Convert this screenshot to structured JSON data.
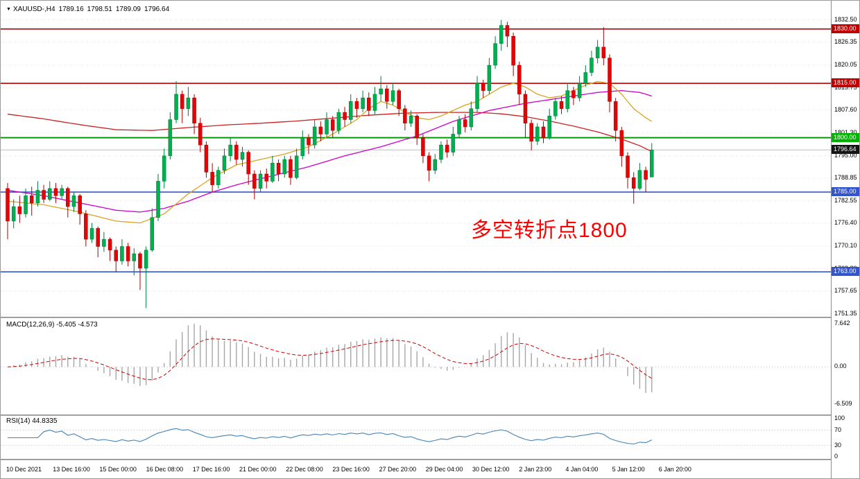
{
  "header": {
    "dropdown_icon": "▼",
    "symbol_timeframe": "XAUUSD-,H4",
    "open": "1789.16",
    "high": "1798.51",
    "low": "1789.09",
    "close": "1796.64"
  },
  "annotation": {
    "text": "多空转折点1800",
    "color": "#FF0000"
  },
  "chart_data": {
    "type": "candlestick",
    "symbol": "XAUUSD",
    "timeframe": "H4",
    "colors": {
      "up": "#00B050",
      "up_wick": "#007A38",
      "down": "#E30505",
      "down_wick": "#AA0000",
      "grid": "#DCDCDC",
      "current_line": "#BDBDBD",
      "current_box": "#141414",
      "macd_hist": "#A6A6A6",
      "macd_signal": "#CC0000",
      "rsi": "#4682B4"
    },
    "price_axis": {
      "top": 1837.8,
      "bottom": 1750.6,
      "ticks": [
        1832.5,
        1826.35,
        1820.05,
        1813.75,
        1807.6,
        1801.3,
        1795.0,
        1788.85,
        1782.55,
        1776.4,
        1770.1,
        1763.8,
        1757.65,
        1751.35
      ],
      "tick_labels": [
        "1832.50",
        "1826.35",
        "1820.05",
        "1813.75",
        "1807.60",
        "1801.30",
        "1795.00",
        "1788.85",
        "1782.55",
        "1776.40",
        "1770.10",
        "1763.80",
        "1757.65",
        "1751.35"
      ]
    },
    "horizontal_lines": [
      {
        "price": 1830.0,
        "label": "1830.00",
        "color": "#C00000",
        "width": 1.6,
        "label_bg": "#C00000"
      },
      {
        "price": 1815.0,
        "label": "1815.00",
        "color": "#C00000",
        "width": 1.6,
        "label_bg": "#C00000"
      },
      {
        "price": 1800.0,
        "label": "1800.00",
        "color": "#009B00",
        "width": 2,
        "label_bg": "#00B300"
      },
      {
        "price": 1785.0,
        "label": "1785.00",
        "color": "#3355CC",
        "width": 1.6,
        "label_bg": "#3355CC"
      },
      {
        "price": 1763.0,
        "label": "1763.00",
        "color": "#3355CC",
        "width": 1.6,
        "label_bg": "#3355CC"
      }
    ],
    "current_price": {
      "value": 1796.64,
      "label": "1796.64"
    },
    "x_axis_labels": [
      "10 Dec 2021",
      "13 Dec 16:00",
      "15 Dec 00:00",
      "16 Dec 08:00",
      "17 Dec 16:00",
      "21 Dec 00:00",
      "22 Dec 08:00",
      "23 Dec 16:00",
      "27 Dec 20:00",
      "29 Dec 04:00",
      "30 Dec 12:00",
      "2 Jan 23:00",
      "4 Jan 04:00",
      "5 Jan 12:00",
      "6 Jan 20:00"
    ],
    "candles": [
      [
        1786.0,
        1787.5,
        1772.0,
        1777.0
      ],
      [
        1777.0,
        1783.0,
        1775.0,
        1781.0
      ],
      [
        1781.0,
        1784.0,
        1776.5,
        1779.0
      ],
      [
        1779.0,
        1786.0,
        1778.0,
        1784.0
      ],
      [
        1784.0,
        1786.5,
        1778.5,
        1782.0
      ],
      [
        1782.0,
        1788.0,
        1781.0,
        1785.5
      ],
      [
        1785.5,
        1787.0,
        1782.0,
        1783.0
      ],
      [
        1783.0,
        1788.0,
        1782.5,
        1786.0
      ],
      [
        1786.0,
        1787.5,
        1782.0,
        1784.0
      ],
      [
        1784.0,
        1787.0,
        1783.0,
        1786.0
      ],
      [
        1786.0,
        1786.5,
        1778.0,
        1781.0
      ],
      [
        1781.0,
        1785.0,
        1779.5,
        1784.0
      ],
      [
        1784.0,
        1784.5,
        1776.0,
        1779.0
      ],
      [
        1779.0,
        1780.0,
        1770.0,
        1772.0
      ],
      [
        1772.0,
        1776.5,
        1771.0,
        1775.0
      ],
      [
        1775.0,
        1775.5,
        1767.0,
        1770.0
      ],
      [
        1770.0,
        1774.0,
        1768.5,
        1772.0
      ],
      [
        1772.0,
        1772.5,
        1766.0,
        1769.0
      ],
      [
        1769.0,
        1770.0,
        1763.0,
        1766.0
      ],
      [
        1766.0,
        1772.0,
        1765.0,
        1770.0
      ],
      [
        1770.0,
        1771.0,
        1764.5,
        1766.0
      ],
      [
        1766.0,
        1769.5,
        1762.0,
        1768.0
      ],
      [
        1768.0,
        1768.5,
        1758.0,
        1764.0
      ],
      [
        1764.0,
        1770.0,
        1753.0,
        1769.0
      ],
      [
        1769.0,
        1780.5,
        1768.5,
        1778.0
      ],
      [
        1778.0,
        1790.0,
        1777.0,
        1788.0
      ],
      [
        1788.0,
        1797.0,
        1786.0,
        1795.0
      ],
      [
        1795.0,
        1807.0,
        1794.0,
        1805.0
      ],
      [
        1805.0,
        1815.6,
        1804.0,
        1812.0
      ],
      [
        1812.0,
        1813.0,
        1804.0,
        1808.0
      ],
      [
        1808.0,
        1814.0,
        1806.0,
        1811.0
      ],
      [
        1811.0,
        1812.0,
        1801.0,
        1804.0
      ],
      [
        1804.0,
        1805.5,
        1796.0,
        1798.0
      ],
      [
        1798.0,
        1799.0,
        1789.0,
        1790.5
      ],
      [
        1790.5,
        1793.0,
        1785.0,
        1787.0
      ],
      [
        1787.0,
        1792.0,
        1786.0,
        1791.0
      ],
      [
        1791.0,
        1797.0,
        1790.0,
        1795.0
      ],
      [
        1795.0,
        1800.0,
        1793.5,
        1798.0
      ],
      [
        1798.0,
        1799.0,
        1792.5,
        1794.0
      ],
      [
        1794.0,
        1797.5,
        1792.0,
        1796.0
      ],
      [
        1796.0,
        1796.5,
        1787.0,
        1790.0
      ],
      [
        1790.0,
        1791.0,
        1783.0,
        1786.0
      ],
      [
        1786.0,
        1791.0,
        1785.0,
        1790.0
      ],
      [
        1790.0,
        1791.5,
        1786.0,
        1788.0
      ],
      [
        1788.0,
        1795.0,
        1787.5,
        1793.0
      ],
      [
        1793.0,
        1794.0,
        1788.0,
        1790.0
      ],
      [
        1790.0,
        1795.0,
        1789.0,
        1794.0
      ],
      [
        1794.0,
        1795.0,
        1787.0,
        1789.0
      ],
      [
        1789.0,
        1797.0,
        1788.5,
        1795.0
      ],
      [
        1795.0,
        1802.0,
        1794.0,
        1800.0
      ],
      [
        1800.0,
        1801.0,
        1795.5,
        1798.0
      ],
      [
        1798.0,
        1805.0,
        1797.0,
        1803.0
      ],
      [
        1803.0,
        1804.5,
        1799.0,
        1801.0
      ],
      [
        1801.0,
        1807.0,
        1800.0,
        1805.0
      ],
      [
        1805.0,
        1806.0,
        1800.0,
        1802.0
      ],
      [
        1802.0,
        1808.0,
        1801.0,
        1807.0
      ],
      [
        1807.0,
        1808.5,
        1803.0,
        1805.0
      ],
      [
        1805.0,
        1812.0,
        1804.0,
        1810.0
      ],
      [
        1810.0,
        1811.0,
        1805.5,
        1808.0
      ],
      [
        1808.0,
        1813.0,
        1807.0,
        1811.0
      ],
      [
        1811.0,
        1812.5,
        1806.0,
        1807.5
      ],
      [
        1807.5,
        1814.0,
        1806.5,
        1812.0
      ],
      [
        1812.0,
        1817.0,
        1810.0,
        1813.5
      ],
      [
        1813.5,
        1814.5,
        1808.0,
        1810.0
      ],
      [
        1810.0,
        1815.0,
        1809.0,
        1813.0
      ],
      [
        1813.0,
        1813.5,
        1806.0,
        1808.0
      ],
      [
        1808.0,
        1809.0,
        1802.0,
        1804.0
      ],
      [
        1804.0,
        1807.5,
        1803.0,
        1806.0
      ],
      [
        1806.0,
        1806.5,
        1798.0,
        1800.0
      ],
      [
        1800.0,
        1801.0,
        1793.0,
        1795.0
      ],
      [
        1795.0,
        1796.0,
        1788.0,
        1791.0
      ],
      [
        1791.0,
        1795.5,
        1790.0,
        1794.0
      ],
      [
        1794.0,
        1799.0,
        1793.0,
        1798.0
      ],
      [
        1798.0,
        1799.5,
        1794.5,
        1796.0
      ],
      [
        1796.0,
        1803.0,
        1795.0,
        1801.0
      ],
      [
        1801.0,
        1806.0,
        1800.0,
        1805.0
      ],
      [
        1805.0,
        1806.5,
        1801.5,
        1803.0
      ],
      [
        1803.0,
        1810.0,
        1802.0,
        1808.0
      ],
      [
        1808.0,
        1817.0,
        1807.0,
        1815.0
      ],
      [
        1815.0,
        1816.0,
        1811.0,
        1813.0
      ],
      [
        1813.0,
        1822.0,
        1812.0,
        1820.0
      ],
      [
        1820.0,
        1828.0,
        1819.0,
        1826.0
      ],
      [
        1826.0,
        1832.5,
        1824.0,
        1831.0
      ],
      [
        1831.0,
        1832.0,
        1825.0,
        1828.0
      ],
      [
        1828.0,
        1829.0,
        1817.0,
        1820.0
      ],
      [
        1820.0,
        1821.0,
        1809.0,
        1812.0
      ],
      [
        1812.0,
        1813.0,
        1800.0,
        1804.0
      ],
      [
        1804.0,
        1805.0,
        1796.5,
        1799.0
      ],
      [
        1799.0,
        1804.0,
        1798.0,
        1803.0
      ],
      [
        1803.0,
        1804.5,
        1798.5,
        1800.0
      ],
      [
        1800.0,
        1808.0,
        1799.5,
        1806.0
      ],
      [
        1806.0,
        1811.0,
        1805.0,
        1810.0
      ],
      [
        1810.0,
        1811.5,
        1806.5,
        1808.0
      ],
      [
        1808.0,
        1815.0,
        1807.0,
        1813.0
      ],
      [
        1813.0,
        1814.0,
        1809.0,
        1811.0
      ],
      [
        1811.0,
        1817.0,
        1810.0,
        1815.0
      ],
      [
        1815.0,
        1820.0,
        1814.0,
        1818.0
      ],
      [
        1818.0,
        1824.0,
        1817.0,
        1822.0
      ],
      [
        1822.0,
        1827.0,
        1820.5,
        1825.0
      ],
      [
        1825.0,
        1830.5,
        1820.0,
        1822.0
      ],
      [
        1822.0,
        1823.0,
        1807.0,
        1810.0
      ],
      [
        1810.0,
        1811.0,
        1799.0,
        1802.0
      ],
      [
        1802.0,
        1803.0,
        1792.0,
        1795.0
      ],
      [
        1795.0,
        1796.0,
        1786.0,
        1789.0
      ],
      [
        1789.0,
        1790.5,
        1781.8,
        1786.0
      ],
      [
        1786.0,
        1793.0,
        1785.5,
        1791.0
      ],
      [
        1791.0,
        1792.0,
        1785.0,
        1788.5
      ],
      [
        1789.16,
        1798.51,
        1789.09,
        1796.64
      ]
    ],
    "overlays": [
      {
        "name": "ma-long-red",
        "color": "#CC2020",
        "points": [
          [
            0,
            1806.5
          ],
          [
            6,
            1805.2
          ],
          [
            12,
            1803.6
          ],
          [
            18,
            1802.2
          ],
          [
            24,
            1802.0
          ],
          [
            30,
            1802.8
          ],
          [
            36,
            1803.5
          ],
          [
            42,
            1804.0
          ],
          [
            48,
            1804.6
          ],
          [
            54,
            1805.4
          ],
          [
            60,
            1806.2
          ],
          [
            66,
            1806.8
          ],
          [
            72,
            1807.0
          ],
          [
            78,
            1807.0
          ],
          [
            82,
            1806.6
          ],
          [
            86,
            1805.8
          ],
          [
            90,
            1804.6
          ],
          [
            94,
            1803.2
          ],
          [
            98,
            1801.6
          ],
          [
            102,
            1799.6
          ],
          [
            105,
            1797.8
          ],
          [
            107,
            1796.2
          ]
        ]
      },
      {
        "name": "ma-mid-magenta",
        "color": "#CC00CC",
        "points": [
          [
            0,
            1785.5
          ],
          [
            6,
            1784.0
          ],
          [
            12,
            1782.0
          ],
          [
            18,
            1780.0
          ],
          [
            22,
            1779.5
          ],
          [
            26,
            1780.5
          ],
          [
            30,
            1782.5
          ],
          [
            34,
            1785.0
          ],
          [
            38,
            1787.0
          ],
          [
            44,
            1789.5
          ],
          [
            50,
            1792.0
          ],
          [
            56,
            1795.0
          ],
          [
            62,
            1797.5
          ],
          [
            68,
            1800.5
          ],
          [
            74,
            1804.5
          ],
          [
            80,
            1807.5
          ],
          [
            86,
            1809.5
          ],
          [
            92,
            1811.0
          ],
          [
            98,
            1812.5
          ],
          [
            102,
            1813.0
          ],
          [
            105,
            1812.5
          ],
          [
            107,
            1811.5
          ]
        ]
      },
      {
        "name": "ma-fast-orange",
        "color": "#D9A420",
        "points": [
          [
            0,
            1782.5
          ],
          [
            6,
            1781.5
          ],
          [
            12,
            1779.5
          ],
          [
            18,
            1777.0
          ],
          [
            22,
            1776.5
          ],
          [
            26,
            1779.0
          ],
          [
            30,
            1784.5
          ],
          [
            34,
            1789.0
          ],
          [
            38,
            1792.5
          ],
          [
            42,
            1794.0
          ],
          [
            46,
            1795.5
          ],
          [
            50,
            1797.5
          ],
          [
            54,
            1801.0
          ],
          [
            58,
            1805.0
          ],
          [
            60,
            1808.0
          ],
          [
            62,
            1810.0
          ],
          [
            64,
            1809.0
          ],
          [
            66,
            1807.0
          ],
          [
            68,
            1805.5
          ],
          [
            70,
            1805.0
          ],
          [
            72,
            1806.0
          ],
          [
            74,
            1807.5
          ],
          [
            76,
            1809.0
          ],
          [
            78,
            1810.0
          ],
          [
            80,
            1812.0
          ],
          [
            82,
            1814.0
          ],
          [
            84,
            1815.0
          ],
          [
            86,
            1814.0
          ],
          [
            88,
            1812.0
          ],
          [
            90,
            1811.0
          ],
          [
            92,
            1811.5
          ],
          [
            94,
            1813.0
          ],
          [
            96,
            1814.5
          ],
          [
            98,
            1815.5
          ],
          [
            100,
            1815.0
          ],
          [
            102,
            1812.0
          ],
          [
            104,
            1808.0
          ],
          [
            106,
            1805.5
          ],
          [
            107,
            1804.5
          ]
        ]
      }
    ],
    "indicators": {
      "macd": {
        "display": "MACD(12,26,9) -5.405 -4.573",
        "params": [
          12,
          26,
          9
        ],
        "last_macd": -5.405,
        "last_signal": -4.573,
        "axis_labels": [
          "7.642",
          "0.00",
          "-6.509"
        ],
        "axis_ticks": [
          7.642,
          0,
          -6.509
        ],
        "scale": {
          "max": 8.6,
          "min": -8.4
        }
      },
      "rsi": {
        "display": "RSI(14) 44.8335",
        "period": 14,
        "last_value": 44.8335,
        "axis_labels": [
          "100",
          "70",
          "30",
          "0"
        ],
        "axis_ticks": [
          100,
          70,
          30,
          0
        ],
        "levels": [
          70,
          30
        ]
      }
    }
  }
}
